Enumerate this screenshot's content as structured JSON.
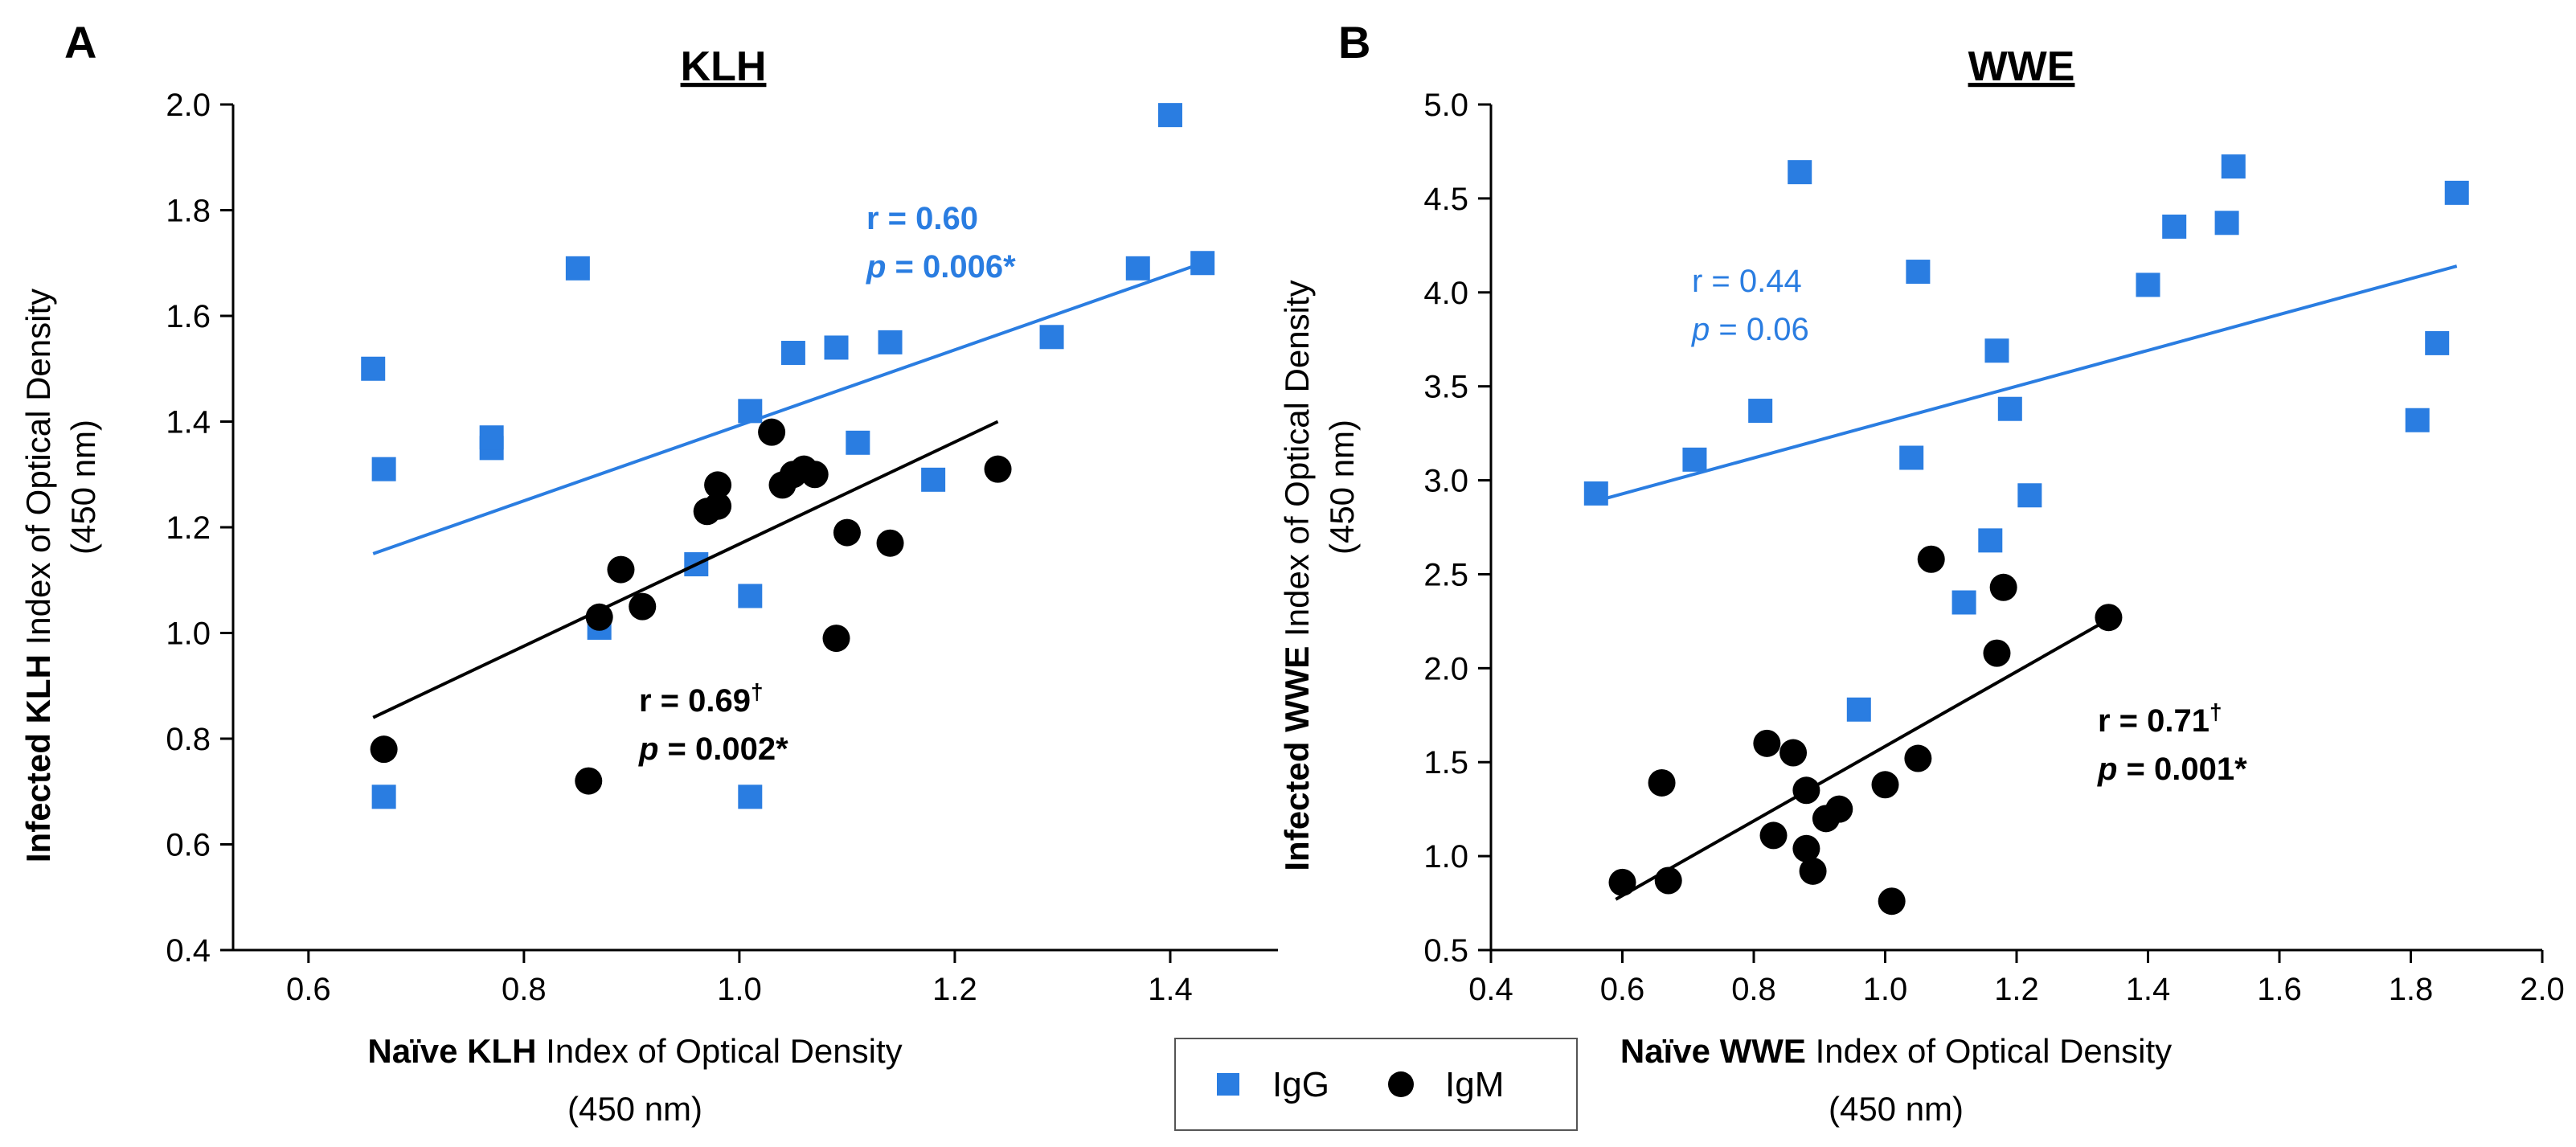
{
  "chart_data": [
    {
      "panel": "A",
      "type": "scatter",
      "title": "KLH",
      "xlabel_bold": "Naïve KLH",
      "xlabel_rest": "Index of Optical Density",
      "xlabel_line2": "(450 nm)",
      "ylabel_bold": "Infected KLH",
      "ylabel_rest": "Index of Optical Density",
      "ylabel_line2": "(450 nm)",
      "xlim": [
        0.53,
        1.5
      ],
      "ylim": [
        0.4,
        2.0
      ],
      "xticks": [
        0.6,
        0.8,
        1.0,
        1.2,
        1.4
      ],
      "xtick_labels": [
        "0.6",
        "0.8",
        "1.0",
        "1.2",
        "1.4"
      ],
      "yticks": [
        0.4,
        0.6,
        0.8,
        1.0,
        1.2,
        1.4,
        1.6,
        1.8,
        2.0
      ],
      "ytick_labels": [
        "0.4",
        "0.6",
        "0.8",
        "1.0",
        "1.2",
        "1.4",
        "1.6",
        "1.8",
        "2.0"
      ],
      "series": [
        {
          "name": "IgG",
          "color": "#2a7de1",
          "marker": "square",
          "points": [
            [
              0.66,
              1.5
            ],
            [
              0.67,
              1.31
            ],
            [
              0.77,
              1.35
            ],
            [
              0.77,
              1.37
            ],
            [
              0.85,
              1.69
            ],
            [
              0.96,
              1.13
            ],
            [
              0.87,
              1.01
            ],
            [
              1.01,
              0.69
            ],
            [
              1.01,
              1.07
            ],
            [
              1.01,
              1.42
            ],
            [
              1.05,
              1.53
            ],
            [
              1.09,
              1.54
            ],
            [
              1.11,
              1.36
            ],
            [
              1.14,
              1.55
            ],
            [
              1.18,
              1.29
            ],
            [
              1.29,
              1.56
            ],
            [
              1.37,
              1.69
            ],
            [
              1.4,
              1.98
            ],
            [
              1.43,
              1.7
            ],
            [
              0.67,
              0.69
            ]
          ],
          "fit": {
            "x": [
              0.66,
              1.43
            ],
            "y": [
              1.15,
              1.7
            ]
          },
          "r_text": "r = 0.60",
          "p_label": "p",
          "p_value": "= 0.006*",
          "bold": true
        },
        {
          "name": "IgM",
          "color": "#000000",
          "marker": "circle",
          "points": [
            [
              0.67,
              0.78
            ],
            [
              0.86,
              0.72
            ],
            [
              0.87,
              1.03
            ],
            [
              0.89,
              1.12
            ],
            [
              0.91,
              1.05
            ],
            [
              0.97,
              1.23
            ],
            [
              0.98,
              1.24
            ],
            [
              0.98,
              1.28
            ],
            [
              1.03,
              1.38
            ],
            [
              1.04,
              1.28
            ],
            [
              1.05,
              1.3
            ],
            [
              1.06,
              1.31
            ],
            [
              1.07,
              1.3
            ],
            [
              1.09,
              0.99
            ],
            [
              1.1,
              1.19
            ],
            [
              1.14,
              1.17
            ],
            [
              1.24,
              1.31
            ]
          ],
          "fit": {
            "x": [
              0.66,
              1.24
            ],
            "y": [
              0.84,
              1.4
            ]
          },
          "r_text": "r = 0.69",
          "r_sup": "†",
          "p_label": "p",
          "p_value": "= 0.002*",
          "bold": true
        }
      ]
    },
    {
      "panel": "B",
      "type": "scatter",
      "title": "WWE",
      "xlabel_bold": "Naïve WWE",
      "xlabel_rest": "Index of Optical Density",
      "xlabel_line2": "(450 nm)",
      "ylabel_bold": "Infected WWE",
      "ylabel_rest": "Index of Optical Density",
      "ylabel_line2": "(450 nm)",
      "xlim": [
        0.4,
        2.0
      ],
      "ylim": [
        0.5,
        5.0
      ],
      "xticks": [
        0.4,
        0.6,
        0.8,
        1.0,
        1.2,
        1.4,
        1.6,
        1.8,
        2.0
      ],
      "xtick_labels": [
        "0.4",
        "0.6",
        "0.8",
        "1.0",
        "1.2",
        "1.4",
        "1.6",
        "1.8",
        "2.0"
      ],
      "yticks": [
        0.5,
        1.0,
        1.5,
        2.0,
        2.5,
        3.0,
        3.5,
        4.0,
        4.5,
        5.0
      ],
      "ytick_labels": [
        "0.5",
        "1.0",
        "1.5",
        "2.0",
        "2.5",
        "3.0",
        "3.5",
        "4.0",
        "4.5",
        "5.0"
      ],
      "series": [
        {
          "name": "IgG",
          "color": "#2a7de1",
          "marker": "square",
          "points": [
            [
              0.56,
              2.93
            ],
            [
              0.71,
              3.11
            ],
            [
              0.81,
              3.37
            ],
            [
              0.87,
              4.64
            ],
            [
              0.96,
              1.78
            ],
            [
              1.04,
              3.12
            ],
            [
              1.05,
              4.11
            ],
            [
              1.12,
              2.35
            ],
            [
              1.16,
              2.68
            ],
            [
              1.17,
              3.69
            ],
            [
              1.19,
              3.38
            ],
            [
              1.22,
              2.92
            ],
            [
              1.4,
              4.04
            ],
            [
              1.44,
              4.35
            ],
            [
              1.52,
              4.37
            ],
            [
              1.53,
              4.67
            ],
            [
              1.81,
              3.32
            ],
            [
              1.84,
              3.73
            ],
            [
              1.87,
              4.53
            ]
          ],
          "fit": {
            "x": [
              0.56,
              1.87
            ],
            "y": [
              2.89,
              4.14
            ]
          },
          "r_text": "r = 0.44",
          "p_label": "p",
          "p_value": "= 0.06",
          "bold": false
        },
        {
          "name": "IgM",
          "color": "#000000",
          "marker": "circle",
          "points": [
            [
              0.6,
              0.86
            ],
            [
              0.66,
              1.39
            ],
            [
              0.67,
              0.87
            ],
            [
              0.82,
              1.6
            ],
            [
              0.83,
              1.11
            ],
            [
              0.86,
              1.55
            ],
            [
              0.88,
              1.04
            ],
            [
              0.88,
              1.35
            ],
            [
              0.89,
              0.92
            ],
            [
              0.91,
              1.2
            ],
            [
              0.93,
              1.25
            ],
            [
              1.0,
              1.38
            ],
            [
              1.01,
              0.76
            ],
            [
              1.05,
              1.52
            ],
            [
              1.07,
              2.58
            ],
            [
              1.17,
              2.08
            ],
            [
              1.18,
              2.43
            ],
            [
              1.34,
              2.27
            ]
          ],
          "fit": {
            "x": [
              0.59,
              1.34
            ],
            "y": [
              0.77,
              2.26
            ]
          },
          "r_text": "r = 0.71",
          "r_sup": "†",
          "p_label": "p",
          "p_value": "= 0.001*",
          "bold": true
        }
      ]
    }
  ],
  "legend": {
    "items": [
      {
        "label": "IgG",
        "color": "#2a7de1",
        "marker": "square"
      },
      {
        "label": "IgM",
        "color": "#000000",
        "marker": "circle"
      }
    ]
  }
}
